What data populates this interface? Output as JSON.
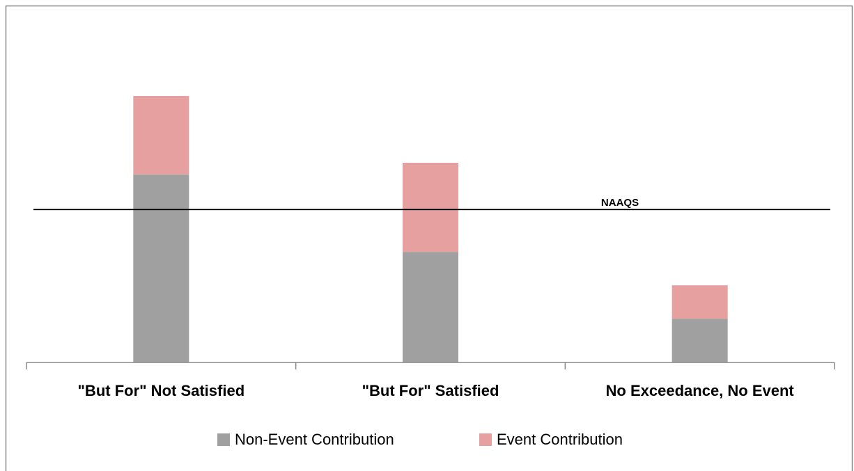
{
  "chart_data": {
    "type": "bar",
    "stacked": true,
    "categories": [
      "\"But For\" Not Satisfied",
      "\"But For\" Satisfied",
      "No Exceedance, No Event"
    ],
    "series": [
      {
        "name": "Non-Event Contribution",
        "color": "#a0a0a0",
        "values": [
          56.3,
          33.1,
          13.1
        ]
      },
      {
        "name": "Event Contribution",
        "color": "#e6a0a0",
        "values": [
          23.5,
          26.7,
          10.0
        ]
      }
    ],
    "ylim": [
      0,
      100
    ],
    "reference_line": {
      "label": "NAAQS",
      "value": 45.8,
      "color": "#000000"
    },
    "legend": "bottom"
  }
}
